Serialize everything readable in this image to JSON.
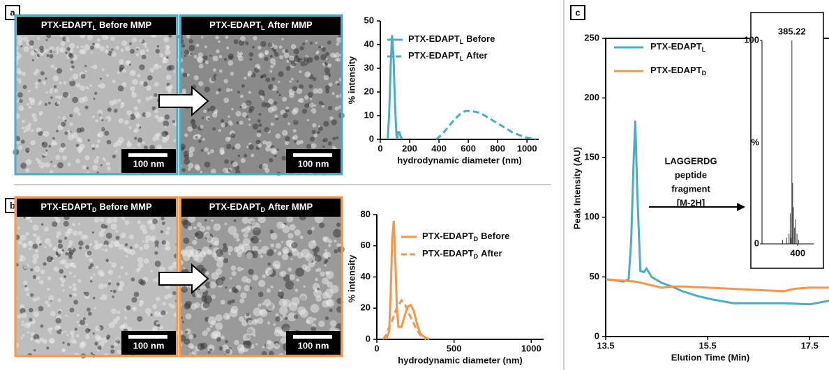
{
  "panel_labels": [
    "a",
    "b",
    "c"
  ],
  "micrographs": [
    {
      "title": {
        "name": "PTX-EDAPT",
        "sub": "L",
        "rest": "Before MMP"
      },
      "scale_bar": "100 nm"
    },
    {
      "title": {
        "name": "PTX-EDAPT",
        "sub": "L",
        "rest": "After MMP"
      },
      "scale_bar": "100 nm"
    },
    {
      "title": {
        "name": "PTX-EDAPT",
        "sub": "D",
        "rest": "Before MMP"
      },
      "scale_bar": "100 nm"
    },
    {
      "title": {
        "name": "PTX-EDAPT",
        "sub": "D",
        "rest": "After MMP"
      },
      "scale_bar": "100 nm"
    }
  ],
  "chart_data": [
    {
      "type": "line",
      "x_label": "hydrodynamic diameter (nm)",
      "y_label": "% intensity",
      "xlim": [
        0,
        1080
      ],
      "xticks": [
        0,
        200,
        400,
        600,
        800,
        1000
      ],
      "ylim": [
        0,
        50
      ],
      "yticks": [
        0,
        10,
        20,
        30,
        40,
        50
      ],
      "series": [
        {
          "name": "PTX-EDAPT",
          "name_sub": "L",
          "name_rest": "Before",
          "color": "#4bacc6",
          "dashed": false,
          "x": [
            50,
            60,
            70,
            80,
            90,
            100,
            110,
            115,
            120,
            130,
            140,
            150
          ],
          "values": [
            0,
            10,
            30,
            44,
            35,
            15,
            2,
            0,
            3,
            3,
            1,
            0
          ]
        },
        {
          "name": "PTX-EDAPT",
          "name_sub": "L",
          "name_rest": "After",
          "color": "#4bacc6",
          "dashed": true,
          "x": [
            380,
            420,
            460,
            500,
            540,
            580,
            620,
            660,
            700,
            740,
            780,
            820,
            860,
            900,
            940,
            980,
            1020,
            1060
          ],
          "values": [
            0,
            2,
            5,
            8,
            10.5,
            12,
            12,
            11.5,
            10.5,
            9,
            7.5,
            6,
            4.5,
            3,
            2,
            1,
            0.5,
            0
          ]
        }
      ]
    },
    {
      "type": "line",
      "x_label": "hydrodynamic diameter (nm)",
      "y_label": "% intensity",
      "xlim": [
        0,
        1080
      ],
      "xticks": [
        0,
        500,
        1000
      ],
      "ylim": [
        0,
        80
      ],
      "yticks": [
        0,
        20,
        40,
        60,
        80
      ],
      "series": [
        {
          "name": "PTX-EDAPT",
          "name_sub": "D",
          "name_rest": "Before",
          "color": "#f79646",
          "dashed": false,
          "x": [
            60,
            80,
            90,
            100,
            110,
            120,
            130,
            140,
            160,
            180,
            200,
            220,
            240,
            260,
            280,
            300,
            320,
            340
          ],
          "values": [
            0,
            5,
            30,
            65,
            76,
            50,
            20,
            8,
            8,
            15,
            21,
            22,
            18,
            10,
            4,
            2,
            1,
            0
          ]
        },
        {
          "name": "PTX-EDAPT",
          "name_sub": "D",
          "name_rest": "After",
          "color": "#f79646",
          "dashed": true,
          "x": [
            40,
            60,
            80,
            100,
            120,
            140,
            160,
            180,
            200,
            220,
            240,
            260,
            280,
            300,
            320
          ],
          "values": [
            0,
            3,
            8,
            12,
            18,
            22,
            25,
            23,
            18,
            14,
            10,
            6,
            3,
            1,
            0
          ]
        }
      ]
    },
    {
      "type": "line",
      "x_label": "Elution Time (Min)",
      "y_label": "Peak Intensity (AU)",
      "xlim": [
        13.5,
        17.88
      ],
      "xticks": [
        13.5,
        15.5,
        17.5
      ],
      "ylim": [
        0,
        250
      ],
      "yticks": [
        0,
        50,
        100,
        150,
        200,
        250
      ],
      "annotation": [
        "LAGGERDG",
        "peptide",
        "fragment",
        "[M-2H]"
      ],
      "series": [
        {
          "name": "PTX-EDAPT",
          "name_sub": "L",
          "color": "#4bacc6",
          "dashed": false,
          "x": [
            13.5,
            13.7,
            13.85,
            13.95,
            14.0,
            14.05,
            14.08,
            14.12,
            14.18,
            14.25,
            14.3,
            14.4,
            14.6,
            14.8,
            15.0,
            15.3,
            15.6,
            16.0,
            16.5,
            17.0,
            17.5,
            17.88
          ],
          "values": [
            48,
            47,
            46,
            48,
            80,
            150,
            181,
            120,
            55,
            54,
            57,
            50,
            45,
            42,
            38,
            34,
            31,
            28,
            28,
            28,
            27,
            30
          ]
        },
        {
          "name": "PTX-EDAPT",
          "name_sub": "D",
          "color": "#f79646",
          "dashed": false,
          "x": [
            13.5,
            13.8,
            14.1,
            14.4,
            14.6,
            14.8,
            15.0,
            15.5,
            16.0,
            16.5,
            17.0,
            17.2,
            17.5,
            17.88
          ],
          "values": [
            48,
            47,
            46,
            43,
            41,
            42,
            42,
            41,
            40,
            39,
            38,
            40,
            41,
            41
          ]
        }
      ]
    },
    {
      "type": "stem",
      "y_label": "%",
      "peak_label": "385.22",
      "xlim": [
        310,
        440
      ],
      "xticks": [
        400
      ],
      "ylim": [
        0,
        100
      ],
      "yticks": [
        0,
        100
      ],
      "x": [
        362,
        372,
        378,
        381,
        383,
        385.22,
        387,
        389,
        392,
        395,
        398,
        402
      ],
      "values": [
        2,
        3,
        5,
        15,
        3,
        100,
        30,
        18,
        8,
        12,
        5,
        2
      ]
    }
  ]
}
